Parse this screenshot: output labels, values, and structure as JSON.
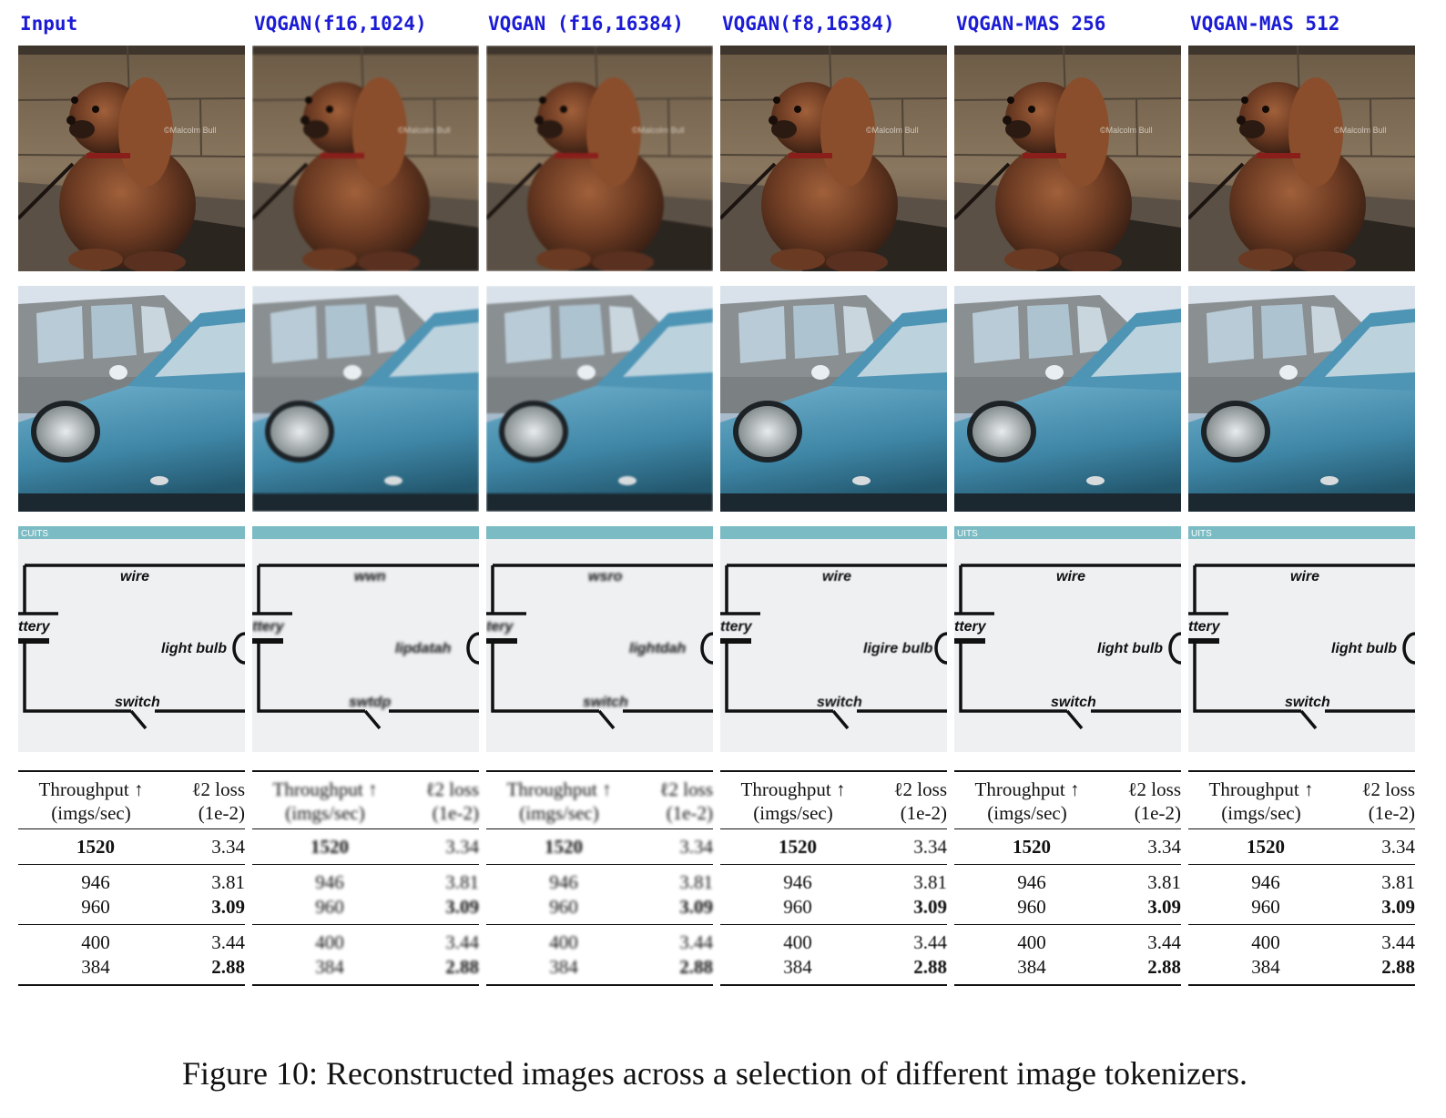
{
  "figure": {
    "caption": "Figure 10: Reconstructed images across a selection of different image tokenizers.",
    "columns": [
      {
        "label": "Input",
        "quality": "sharp",
        "circuit": {
          "header": "CUITS",
          "wire": "wire",
          "battery": "ttery",
          "bulb": "light bulb",
          "switch": "switch"
        },
        "table": {
          "h1": "Throughput ↑",
          "h2": "(imgs/sec)",
          "h3": "ℓ2 loss",
          "h4": "(1e-2)",
          "rows": [
            [
              "1520",
              "3.34"
            ],
            [
              "946",
              "3.81"
            ],
            [
              "960",
              "3.09"
            ],
            [
              "400",
              "3.44"
            ],
            [
              "384",
              "2.88"
            ]
          ]
        }
      },
      {
        "label": "VQGAN(f16,1024)",
        "quality": "garbled",
        "circuit": {
          "header": "",
          "wire": "wwn",
          "battery": "ttery",
          "bulb": "lipdatah",
          "switch": "swtdp"
        },
        "table": {
          "h1": "Throughput ↑",
          "h2": "(imgs/sec)",
          "h3": "ℓ2 loss",
          "h4": "(1e-2)",
          "rows": [
            [
              "1520",
              "3.34"
            ],
            [
              "946",
              "3.81"
            ],
            [
              "960",
              "3.09"
            ],
            [
              "400",
              "3.44"
            ],
            [
              "384",
              "2.88"
            ]
          ]
        }
      },
      {
        "label": "VQGAN (f16,16384)",
        "quality": "garbled",
        "circuit": {
          "header": "",
          "wire": "wsro",
          "battery": "tery",
          "bulb": "lightdah",
          "switch": "switch"
        },
        "table": {
          "h1": "Throughput ↑",
          "h2": "(imgs/sec)",
          "h3": "ℓ2 loss",
          "h4": "(1e-2)",
          "rows": [
            [
              "1520",
              "3.34"
            ],
            [
              "946",
              "3.81"
            ],
            [
              "960",
              "3.09"
            ],
            [
              "400",
              "3.44"
            ],
            [
              "384",
              "2.88"
            ]
          ]
        }
      },
      {
        "label": "VQGAN(f8,16384)",
        "quality": "soft",
        "circuit": {
          "header": "",
          "wire": "wire",
          "battery": "ttery",
          "bulb": "ligire bulb",
          "switch": "switch"
        },
        "table": {
          "h1": "Throughput ↑",
          "h2": "(imgs/sec)",
          "h3": "ℓ2 loss",
          "h4": "(1e-2)",
          "rows": [
            [
              "1520",
              "3.34"
            ],
            [
              "946",
              "3.81"
            ],
            [
              "960",
              "3.09"
            ],
            [
              "400",
              "3.44"
            ],
            [
              "384",
              "2.88"
            ]
          ]
        }
      },
      {
        "label": "VQGAN-MAS 256",
        "quality": "sharp",
        "circuit": {
          "header": "UITS",
          "wire": "wire",
          "battery": "ttery",
          "bulb": "light bulb",
          "switch": "switch"
        },
        "table": {
          "h1": "Throughput ↑",
          "h2": "(imgs/sec)",
          "h3": "ℓ2 loss",
          "h4": "(1e-2)",
          "rows": [
            [
              "1520",
              "3.34"
            ],
            [
              "946",
              "3.81"
            ],
            [
              "960",
              "3.09"
            ],
            [
              "400",
              "3.44"
            ],
            [
              "384",
              "2.88"
            ]
          ]
        }
      },
      {
        "label": "VQGAN-MAS 512",
        "quality": "sharp",
        "circuit": {
          "header": "UITS",
          "wire": "wire",
          "battery": "ttery",
          "bulb": "light bulb",
          "switch": "switch"
        },
        "table": {
          "h1": "Throughput ↑",
          "h2": "(imgs/sec)",
          "h3": "ℓ2 loss",
          "h4": "(1e-2)",
          "rows": [
            [
              "1520",
              "3.34"
            ],
            [
              "946",
              "3.81"
            ],
            [
              "960",
              "3.09"
            ],
            [
              "400",
              "3.44"
            ],
            [
              "384",
              "2.88"
            ]
          ]
        }
      }
    ]
  }
}
